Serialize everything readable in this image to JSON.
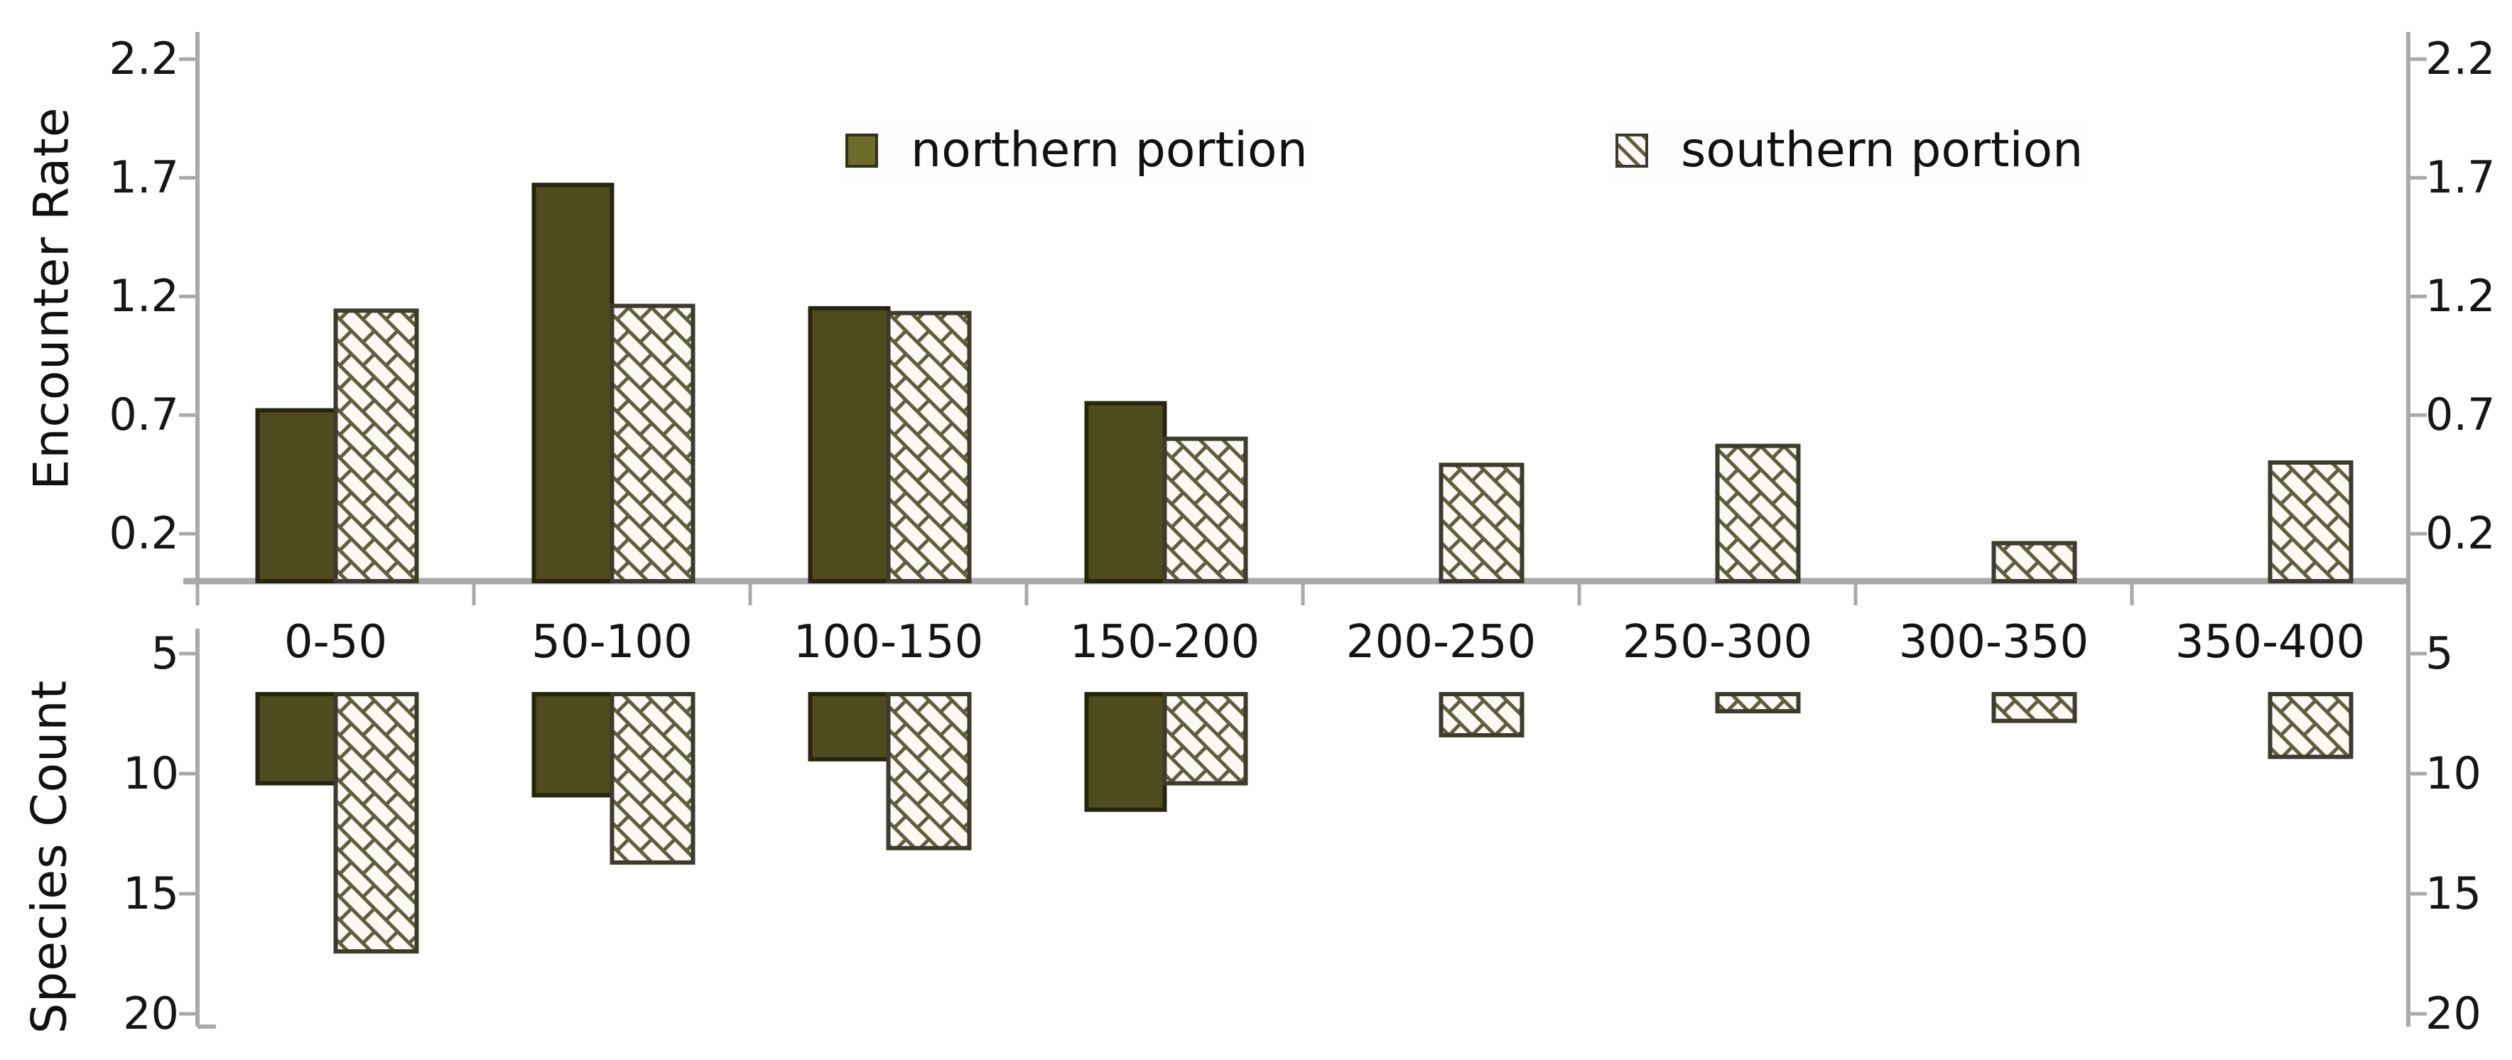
{
  "chart_data": {
    "type": "bar",
    "title": "",
    "categories": [
      "0-50",
      "50-100",
      "100-150",
      "150-200",
      "200-250",
      "250-300",
      "300-350",
      "350-400"
    ],
    "legend": {
      "position": "top-center",
      "entries": [
        {
          "label": "northern portion",
          "style": "solid"
        },
        {
          "label": "southern portion",
          "style": "hatched"
        }
      ]
    },
    "panels": [
      {
        "id": "encounter_rate",
        "ylabel": "Encounter Rate",
        "orientation": "up",
        "yticks": [
          2.2,
          1.7,
          1.2,
          0.7,
          0.2
        ],
        "ylim": [
          0,
          2.31
        ],
        "grid": false,
        "series": [
          {
            "name": "northern portion",
            "style": "solid",
            "values": [
              0.72,
              1.67,
              1.15,
              0.75,
              null,
              null,
              null,
              null
            ]
          },
          {
            "name": "southern portion",
            "style": "hatched",
            "values": [
              1.14,
              1.16,
              1.13,
              0.6,
              0.49,
              0.57,
              0.16,
              0.5
            ]
          }
        ]
      },
      {
        "id": "species_count",
        "ylabel": "Species Count",
        "orientation": "down-inverted",
        "yticks": [
          5,
          10,
          15,
          20
        ],
        "ylim": [
          4.6,
          20.5
        ],
        "bars_hang_from_value": 6.7,
        "grid": false,
        "series": [
          {
            "name": "northern portion",
            "style": "solid",
            "values": [
              10.4,
              10.9,
              9.4,
              11.5,
              null,
              null,
              null,
              null
            ]
          },
          {
            "name": "southern portion",
            "style": "hatched",
            "values": [
              17.4,
              13.7,
              13.1,
              10.4,
              8.4,
              7.4,
              7.8,
              9.3
            ]
          }
        ]
      }
    ],
    "colors": {
      "solid_fill": "#4e4b1e",
      "solid_border": "#26250f",
      "hatch_line": "#5f5e40",
      "hatch_bg": "#fbfaf2",
      "hatch_border": "#3c3b2d",
      "axis": "#a9a9a9",
      "text": "#161616",
      "legend_solid_swatch": "#6d6b29"
    }
  }
}
